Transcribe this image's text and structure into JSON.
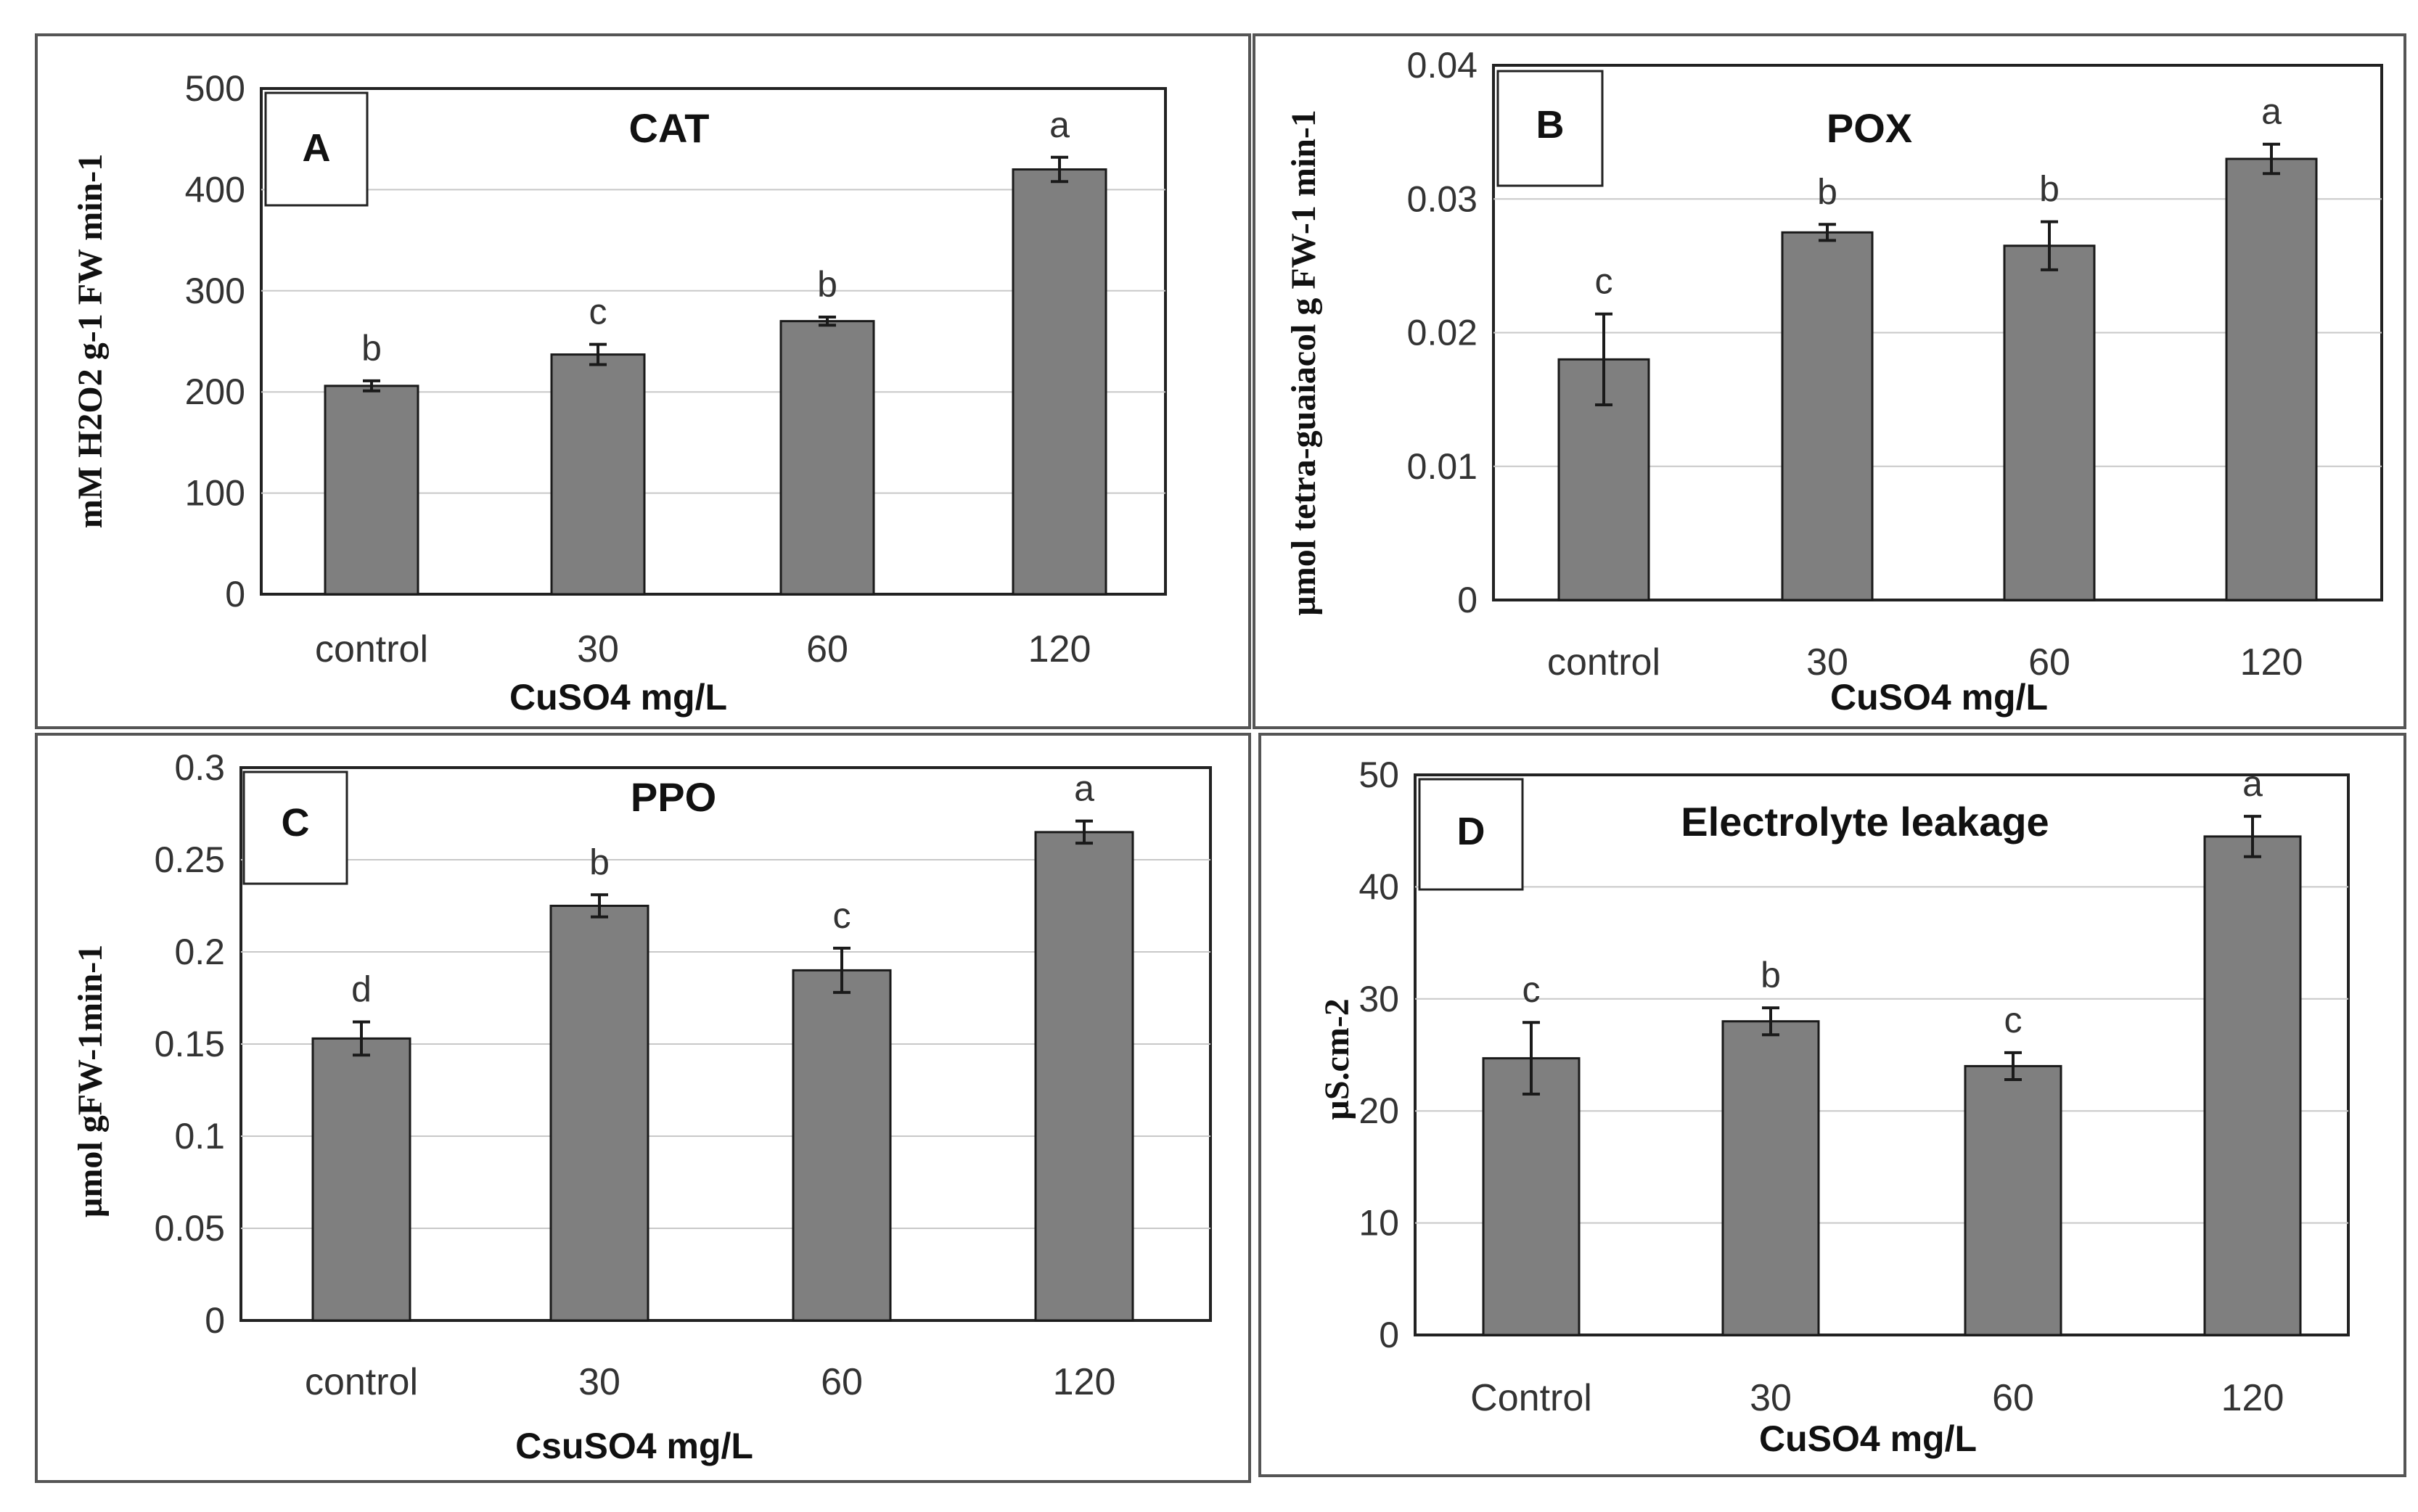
{
  "chart_data": [
    {
      "type": "bar",
      "panel_letter": "A",
      "title": "CAT",
      "categories": [
        "control",
        "30",
        "60",
        "120"
      ],
      "values": [
        206,
        237,
        270,
        420
      ],
      "errors": [
        5,
        10,
        4,
        12
      ],
      "significance": [
        "b",
        "c",
        "b",
        "a"
      ],
      "xlabel": "CuSO4 mg/L",
      "ylabel": "mM H2O2 g-1 FW min-1",
      "ylim": [
        0,
        500
      ],
      "yticks": [
        "0",
        "100",
        "200",
        "300",
        "400",
        "500"
      ],
      "grid": true
    },
    {
      "type": "bar",
      "panel_letter": "B",
      "title": "POX",
      "categories": [
        "control",
        "30",
        "60",
        "120"
      ],
      "values": [
        0.018,
        0.0275,
        0.0265,
        0.033
      ],
      "errors": [
        0.0034,
        0.0006,
        0.0018,
        0.0011
      ],
      "significance": [
        "c",
        "b",
        "b",
        "a"
      ],
      "xlabel": "CuSO4 mg/L",
      "ylabel": "µmol tetra-guaiacol g FW-1 min-1",
      "ylim": [
        0,
        0.04
      ],
      "yticks": [
        "0",
        "0.01",
        "0.02",
        "0.03",
        "0.04"
      ],
      "grid": true
    },
    {
      "type": "bar",
      "panel_letter": "C",
      "title": "PPO",
      "categories": [
        "control",
        "30",
        "60",
        "120"
      ],
      "values": [
        0.153,
        0.225,
        0.19,
        0.265
      ],
      "errors": [
        0.009,
        0.006,
        0.012,
        0.006
      ],
      "significance": [
        "d",
        "b",
        "c",
        "a"
      ],
      "xlabel": "CsuSO4 mg/L",
      "ylabel": "µmol gFW-1min-1",
      "ylim": [
        0,
        0.3
      ],
      "yticks": [
        "0",
        "0.05",
        "0.1",
        "0.15",
        "0.2",
        "0.25",
        "0.3"
      ],
      "grid": true
    },
    {
      "type": "bar",
      "panel_letter": "D",
      "title": "Electrolyte leakage",
      "categories": [
        "Control",
        "30",
        "60",
        "120"
      ],
      "values": [
        24.7,
        28,
        24,
        44.5
      ],
      "errors": [
        3.2,
        1.2,
        1.2,
        1.8
      ],
      "significance": [
        "c",
        "b",
        "c",
        "a"
      ],
      "xlabel": "CuSO4 mg/L",
      "ylabel": "µS.cm-2",
      "ylim": [
        0,
        50
      ],
      "yticks": [
        "0",
        "10",
        "20",
        "30",
        "40",
        "50"
      ],
      "grid": true
    }
  ]
}
